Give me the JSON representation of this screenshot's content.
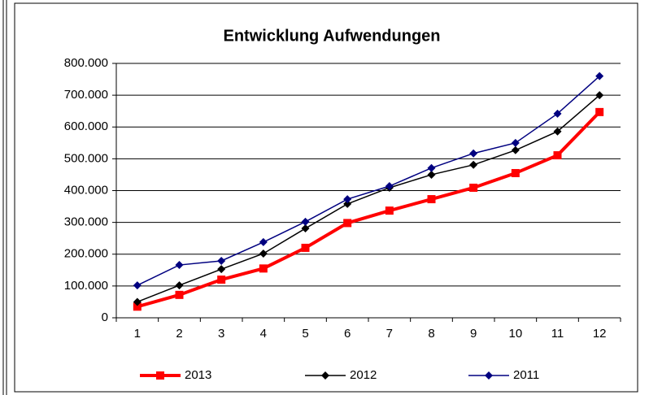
{
  "chart_data": {
    "type": "line",
    "title": "Entwicklung Aufwendungen",
    "categories": [
      "1",
      "2",
      "3",
      "4",
      "5",
      "6",
      "7",
      "8",
      "9",
      "10",
      "11",
      "12"
    ],
    "series": [
      {
        "name": "2013",
        "color": "#ff0000",
        "marker": "square",
        "values": [
          35000,
          72000,
          120000,
          155000,
          220000,
          298000,
          337000,
          373000,
          409000,
          455000,
          511000,
          647000
        ]
      },
      {
        "name": "2012",
        "color": "#000000",
        "marker": "diamond",
        "values": [
          50000,
          102000,
          153000,
          202000,
          281000,
          358000,
          409000,
          450000,
          481000,
          527000,
          586000,
          700000
        ]
      },
      {
        "name": "2011",
        "color": "#000080",
        "marker": "diamond",
        "values": [
          102000,
          166000,
          179000,
          238000,
          302000,
          373000,
          414000,
          471000,
          517000,
          550000,
          642000,
          760000
        ]
      }
    ],
    "ylim": [
      0,
      800000
    ],
    "yticks": [
      0,
      {
        "value": 100000,
        "label": "100.000"
      },
      {
        "value": 200000,
        "label": "200.000"
      },
      {
        "value": 300000,
        "label": "300.000"
      },
      {
        "value": 400000,
        "label": "400.000"
      },
      {
        "value": 500000,
        "label": "500.000"
      },
      {
        "value": 600000,
        "label": "600.000"
      },
      {
        "value": 700000,
        "label": "700.000"
      },
      {
        "value": 800000,
        "label": "800.000"
      }
    ],
    "grid": true,
    "legend": "bottom"
  }
}
